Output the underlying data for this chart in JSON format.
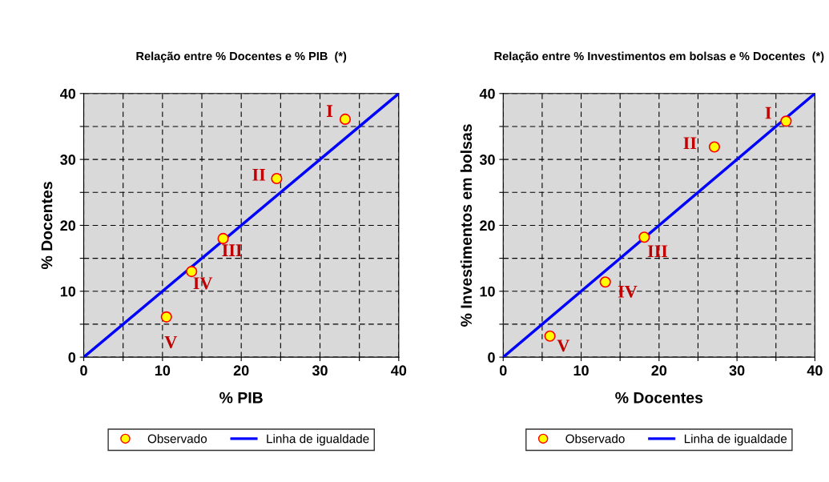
{
  "chart_data": [
    {
      "type": "scatter",
      "title": "Relação entre % Docentes e % PIB  (*)",
      "xlabel": "% PIB",
      "ylabel": "% Docentes",
      "xlim": [
        0,
        40
      ],
      "ylim": [
        0,
        40
      ],
      "xticks": [
        0,
        {
          "value": 5,
          "label": null
        },
        10,
        {
          "value": 15,
          "label": null
        },
        20,
        {
          "value": 25,
          "label": null
        },
        30,
        {
          "value": 35,
          "label": null
        },
        40
      ],
      "yticks": [
        0,
        {
          "value": 5,
          "label": null
        },
        10,
        {
          "value": 15,
          "label": null
        },
        20,
        {
          "value": 25,
          "label": null
        },
        30,
        {
          "value": 35,
          "label": null
        },
        40
      ],
      "grid": true,
      "legend": "bottom",
      "series": [
        {
          "name": "Observado",
          "marker": "circle",
          "color": "#ffff00",
          "x": [
            33.2,
            24.5,
            17.7,
            13.7,
            10.5
          ],
          "values": [
            36.1,
            27.1,
            18.0,
            13.0,
            6.1
          ]
        },
        {
          "name": "Linha de igualdade",
          "type": "line",
          "color": "#0000ff",
          "x": [
            0,
            40
          ],
          "values": [
            0,
            40
          ]
        }
      ],
      "annotations": [
        {
          "text": "I",
          "x": 33.2,
          "y": 36.1
        },
        {
          "text": "II",
          "x": 24.5,
          "y": 27.1
        },
        {
          "text": "III",
          "x": 17.7,
          "y": 18.0
        },
        {
          "text": "IV",
          "x": 13.7,
          "y": 13.0
        },
        {
          "text": "V",
          "x": 10.5,
          "y": 6.1
        }
      ]
    },
    {
      "type": "scatter",
      "title": "Relação entre % Investimentos em bolsas e % Docentes  (*)",
      "xlabel": "% Docentes",
      "ylabel": "% Investimentos em bolsas",
      "xlim": [
        0,
        40
      ],
      "ylim": [
        0,
        40
      ],
      "xticks": [
        0,
        {
          "value": 5,
          "label": null
        },
        10,
        {
          "value": 15,
          "label": null
        },
        20,
        {
          "value": 25,
          "label": null
        },
        30,
        {
          "value": 35,
          "label": null
        },
        40
      ],
      "yticks": [
        0,
        {
          "value": 5,
          "label": null
        },
        10,
        {
          "value": 15,
          "label": null
        },
        20,
        {
          "value": 25,
          "label": null
        },
        30,
        {
          "value": 35,
          "label": null
        },
        40
      ],
      "grid": true,
      "legend": "bottom",
      "series": [
        {
          "name": "Observado",
          "marker": "circle",
          "color": "#ffff00",
          "x": [
            36.3,
            27.1,
            18.1,
            13.1,
            6.0
          ],
          "values": [
            35.8,
            31.9,
            18.2,
            11.4,
            3.2
          ]
        },
        {
          "name": "Linha de igualdade",
          "type": "line",
          "color": "#0000ff",
          "x": [
            0,
            40
          ],
          "values": [
            0,
            40
          ]
        }
      ],
      "annotations": [
        {
          "text": "I",
          "x": 36.3,
          "y": 35.8
        },
        {
          "text": "II",
          "x": 27.1,
          "y": 31.9
        },
        {
          "text": "III",
          "x": 18.1,
          "y": 18.2
        },
        {
          "text": "IV",
          "x": 13.1,
          "y": 11.4
        },
        {
          "text": "V",
          "x": 6.0,
          "y": 3.2
        }
      ]
    }
  ]
}
